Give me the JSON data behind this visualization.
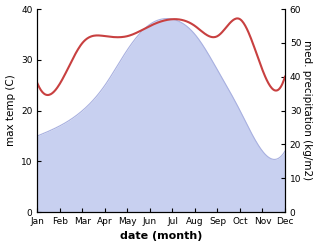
{
  "months": [
    "Jan",
    "Feb",
    "Mar",
    "Apr",
    "May",
    "Jun",
    "Jul",
    "Aug",
    "Sep",
    "Oct",
    "Nov",
    "Dec"
  ],
  "temperature": [
    15,
    17,
    20,
    25,
    32,
    37,
    38,
    35,
    28,
    20,
    12,
    12
  ],
  "precipitation": [
    38,
    38,
    50,
    52,
    52,
    55,
    57,
    55,
    52,
    57,
    42,
    40
  ],
  "temp_fill_color": "#c8d0f0",
  "temp_line_color": "#a8b0e0",
  "precip_color": "#c84040",
  "temp_ylim": [
    0,
    40
  ],
  "precip_ylim": [
    0,
    60
  ],
  "xlabel": "date (month)",
  "ylabel_left": "max temp (C)",
  "ylabel_right": "med. precipitation (kg/m2)",
  "bg_color": "#ffffff",
  "tick_fontsize": 6.5,
  "label_fontsize": 7.5,
  "xlabel_fontsize": 8
}
